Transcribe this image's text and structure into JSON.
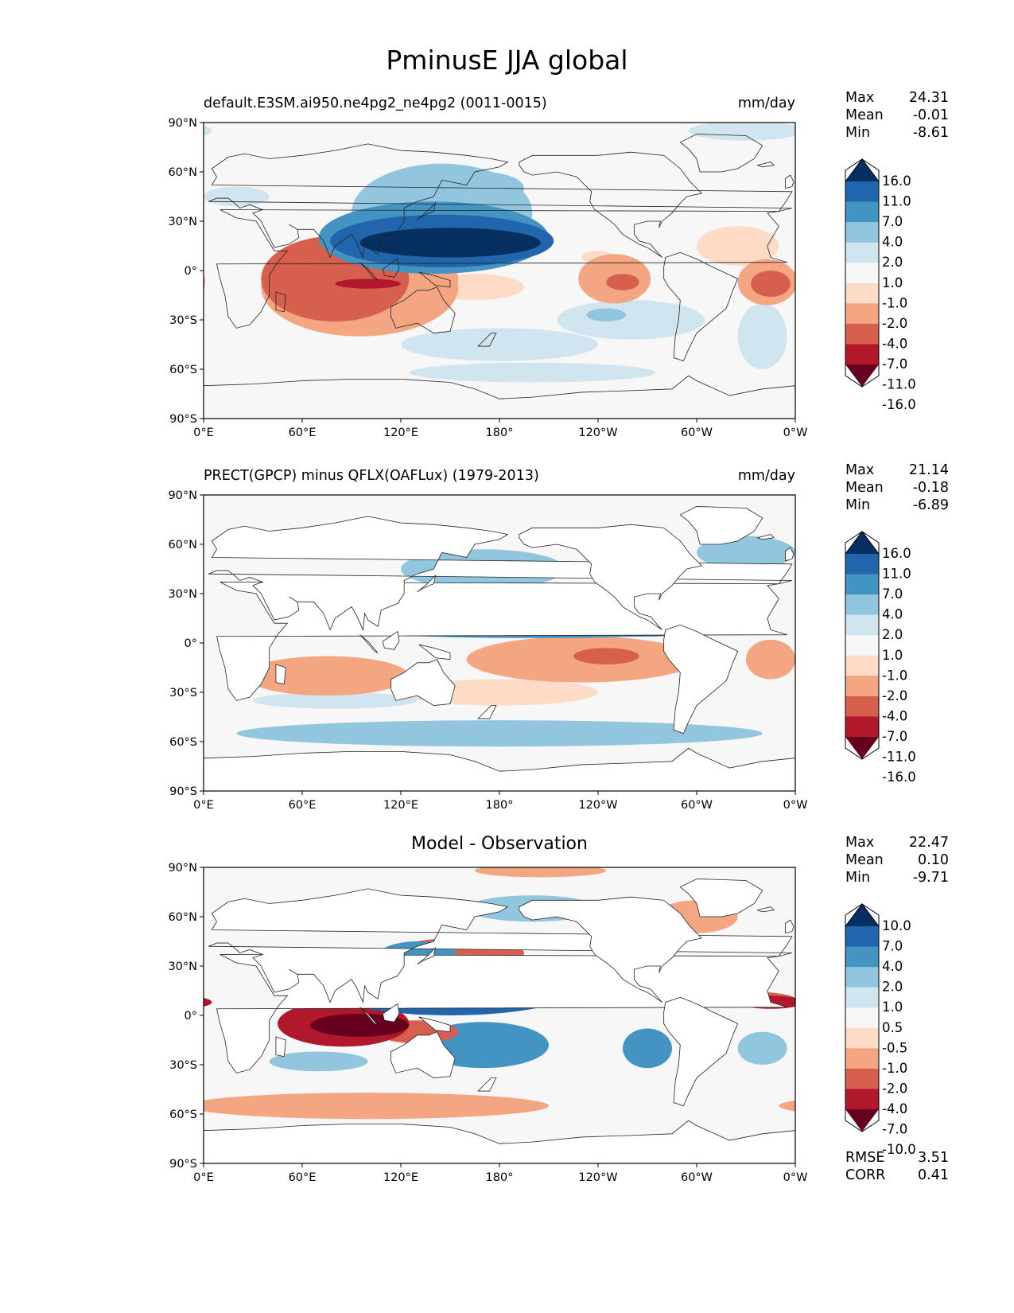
{
  "figure": {
    "title": "PminusE JJA global"
  },
  "chart_data": [
    {
      "type": "heatmap",
      "subtitle": "default.E3SM.ai950.ne4pg2_ne4pg2 (0011-0015)",
      "units": "mm/day",
      "xlabel": "",
      "ylabel": "",
      "x_ticks": [
        "0°E",
        "60°E",
        "120°E",
        "180°",
        "120°W",
        "60°W",
        "0°W"
      ],
      "y_ticks": [
        "90°N",
        "60°N",
        "30°N",
        "0°",
        "30°S",
        "60°S",
        "90°S"
      ],
      "xlim": [
        0,
        360
      ],
      "ylim": [
        -90,
        90
      ],
      "stats": {
        "max_label": "Max",
        "max": "24.31",
        "mean_label": "Mean",
        "mean": "-0.01",
        "min_label": "Min",
        "min": "-8.61"
      },
      "colorbar": {
        "levels": [
          "16.0",
          "11.0",
          "7.0",
          "4.0",
          "2.0",
          "1.0",
          "-1.0",
          "-2.0",
          "-4.0",
          "-7.0",
          "-11.0",
          "-16.0"
        ],
        "colors": [
          "#053061",
          "#2166ac",
          "#4393c3",
          "#92c5de",
          "#d1e5f0",
          "#f7f7f7",
          "#fddbc7",
          "#f4a582",
          "#d6604d",
          "#b2182b",
          "#67001f"
        ]
      },
      "anomalies": [
        {
          "lon": 150,
          "lat": 17,
          "rx": 55,
          "ry": 9,
          "value": 16
        },
        {
          "lon": 145,
          "lat": 18,
          "rx": 68,
          "ry": 16,
          "value": 8
        },
        {
          "lon": 145,
          "lat": 35,
          "rx": 55,
          "ry": 30,
          "value": 3
        },
        {
          "lon": 140,
          "lat": 20,
          "rx": 70,
          "ry": 22,
          "value": 5
        },
        {
          "lon": 170,
          "lat": 50,
          "rx": 25,
          "ry": 10,
          "value": 2.5
        },
        {
          "lon": 80,
          "lat": -5,
          "rx": 45,
          "ry": 26,
          "value": -4.5
        },
        {
          "lon": 95,
          "lat": -10,
          "rx": 60,
          "ry": 30,
          "value": -2.5
        },
        {
          "lon": 100,
          "lat": -8,
          "rx": 20,
          "ry": 3,
          "value": -8
        },
        {
          "lon": 130,
          "lat": -5,
          "rx": 25,
          "ry": 14,
          "value": -3
        },
        {
          "lon": 165,
          "lat": -10,
          "rx": 30,
          "ry": 8,
          "value": -1.5
        },
        {
          "lon": 250,
          "lat": -5,
          "rx": 22,
          "ry": 15,
          "value": -2.5
        },
        {
          "lon": 255,
          "lat": -7,
          "rx": 10,
          "ry": 5,
          "value": -5
        },
        {
          "lon": 343,
          "lat": -7,
          "rx": 18,
          "ry": 14,
          "value": -3
        },
        {
          "lon": 345,
          "lat": -8,
          "rx": 12,
          "ry": 8,
          "value": -5
        },
        {
          "lon": 325,
          "lat": 15,
          "rx": 25,
          "ry": 12,
          "value": -1.5
        },
        {
          "lon": 240,
          "lat": 8,
          "rx": 10,
          "ry": 4,
          "value": -1.5
        },
        {
          "lon": 260,
          "lat": -30,
          "rx": 45,
          "ry": 12,
          "value": 1.5
        },
        {
          "lon": 245,
          "lat": -27,
          "rx": 12,
          "ry": 4,
          "value": 2.5
        },
        {
          "lon": 180,
          "lat": -45,
          "rx": 60,
          "ry": 10,
          "value": 1.5
        },
        {
          "lon": 200,
          "lat": -62,
          "rx": 75,
          "ry": 6,
          "value": 1.5
        },
        {
          "lon": 340,
          "lat": -40,
          "rx": 15,
          "ry": 20,
          "value": 1.5
        },
        {
          "lon": 330,
          "lat": 85,
          "rx": 35,
          "ry": 6,
          "value": 1.5
        },
        {
          "lon": 20,
          "lat": 45,
          "rx": 20,
          "ry": 6,
          "value": 1.5
        }
      ]
    },
    {
      "type": "heatmap",
      "subtitle": "PRECT(GPCP) minus QFLX(OAFLux) (1979-2013)",
      "units": "mm/day",
      "xlabel": "",
      "ylabel": "",
      "x_ticks": [
        "0°E",
        "60°E",
        "120°E",
        "180°",
        "120°W",
        "60°W",
        "0°W"
      ],
      "y_ticks": [
        "90°N",
        "60°N",
        "30°N",
        "0°",
        "30°S",
        "60°S",
        "90°S"
      ],
      "xlim": [
        0,
        360
      ],
      "ylim": [
        -90,
        90
      ],
      "stats": {
        "max_label": "Max",
        "max": "21.14",
        "mean_label": "Mean",
        "mean": "-0.18",
        "min_label": "Min",
        "min": "-6.89"
      },
      "colorbar": {
        "levels": [
          "16.0",
          "11.0",
          "7.0",
          "4.0",
          "2.0",
          "1.0",
          "-1.0",
          "-2.0",
          "-4.0",
          "-7.0",
          "-11.0",
          "-16.0"
        ],
        "colors": [
          "#053061",
          "#2166ac",
          "#4393c3",
          "#92c5de",
          "#d1e5f0",
          "#f7f7f7",
          "#fddbc7",
          "#f4a582",
          "#d6604d",
          "#b2182b",
          "#67001f"
        ]
      },
      "anomalies": [
        {
          "lon": 200,
          "lat": 8,
          "rx": 110,
          "ry": 5,
          "value": 5
        },
        {
          "lon": 270,
          "lat": 8,
          "rx": 30,
          "ry": 4,
          "value": 8
        },
        {
          "lon": 130,
          "lat": 15,
          "rx": 30,
          "ry": 10,
          "value": 4
        },
        {
          "lon": 170,
          "lat": 45,
          "rx": 50,
          "ry": 12,
          "value": 2.5
        },
        {
          "lon": 330,
          "lat": 55,
          "rx": 30,
          "ry": 10,
          "value": 2.5
        },
        {
          "lon": 210,
          "lat": 25,
          "rx": 55,
          "ry": 12,
          "value": -2
        },
        {
          "lon": 320,
          "lat": 25,
          "rx": 30,
          "ry": 8,
          "value": -2
        },
        {
          "lon": 75,
          "lat": -20,
          "rx": 50,
          "ry": 12,
          "value": -3
        },
        {
          "lon": 230,
          "lat": -10,
          "rx": 70,
          "ry": 14,
          "value": -2.2
        },
        {
          "lon": 245,
          "lat": -8,
          "rx": 20,
          "ry": 5,
          "value": -5
        },
        {
          "lon": 345,
          "lat": -10,
          "rx": 15,
          "ry": 12,
          "value": -3
        },
        {
          "lon": 180,
          "lat": -30,
          "rx": 60,
          "ry": 8,
          "value": -1.5
        },
        {
          "lon": 180,
          "lat": -55,
          "rx": 160,
          "ry": 8,
          "value": 2.5
        },
        {
          "lon": 80,
          "lat": -35,
          "rx": 50,
          "ry": 5,
          "value": 1.5
        }
      ]
    },
    {
      "type": "heatmap",
      "subtitle": "Model - Observation",
      "units": "",
      "xlabel": "",
      "ylabel": "",
      "x_ticks": [
        "0°E",
        "60°E",
        "120°E",
        "180°",
        "120°W",
        "60°W",
        "0°W"
      ],
      "y_ticks": [
        "90°N",
        "60°N",
        "30°N",
        "0°",
        "30°S",
        "60°S",
        "90°S"
      ],
      "xlim": [
        0,
        360
      ],
      "ylim": [
        -90,
        90
      ],
      "stats": {
        "max_label": "Max",
        "max": "22.47",
        "mean_label": "Mean",
        "mean": "0.10",
        "min_label": "Min",
        "min": "-9.71"
      },
      "stats_bottom": {
        "rmse_label": "RMSE",
        "rmse": "3.51",
        "corr_label": "CORR",
        "corr": "0.41"
      },
      "colorbar": {
        "levels": [
          "10.0",
          "7.0",
          "4.0",
          "2.0",
          "1.0",
          "0.5",
          "-0.5",
          "-1.0",
          "-2.0",
          "-4.0",
          "-7.0",
          "-10.0"
        ],
        "colors": [
          "#053061",
          "#2166ac",
          "#4393c3",
          "#92c5de",
          "#d1e5f0",
          "#f7f7f7",
          "#fddbc7",
          "#f4a582",
          "#d6604d",
          "#b2182b",
          "#67001f"
        ]
      },
      "anomalies": [
        {
          "lon": 150,
          "lat": 15,
          "rx": 70,
          "ry": 10,
          "value": 12
        },
        {
          "lon": 150,
          "lat": 18,
          "rx": 80,
          "ry": 18,
          "value": 6
        },
        {
          "lon": 130,
          "lat": 35,
          "rx": 25,
          "ry": 10,
          "value": 3
        },
        {
          "lon": 170,
          "lat": -18,
          "rx": 40,
          "ry": 14,
          "value": 3
        },
        {
          "lon": 275,
          "lat": 25,
          "rx": 25,
          "ry": 10,
          "value": 2.5
        },
        {
          "lon": 270,
          "lat": -20,
          "rx": 15,
          "ry": 12,
          "value": 2
        },
        {
          "lon": 340,
          "lat": -20,
          "rx": 15,
          "ry": 10,
          "value": 1.5
        },
        {
          "lon": 70,
          "lat": -28,
          "rx": 30,
          "ry": 6,
          "value": 1.5
        },
        {
          "lon": 200,
          "lat": 65,
          "rx": 40,
          "ry": 8,
          "value": 1.2
        },
        {
          "lon": 85,
          "lat": -5,
          "rx": 40,
          "ry": 14,
          "value": -5
        },
        {
          "lon": 95,
          "lat": -6,
          "rx": 30,
          "ry": 7,
          "value": -8
        },
        {
          "lon": 155,
          "lat": 38,
          "rx": 40,
          "ry": 9,
          "value": -2.5
        },
        {
          "lon": 230,
          "lat": 10,
          "rx": 50,
          "ry": 5,
          "value": -5
        },
        {
          "lon": 320,
          "lat": 10,
          "rx": 40,
          "ry": 5,
          "value": -4
        },
        {
          "lon": 345,
          "lat": 8,
          "rx": 20,
          "ry": 4,
          "value": -7
        },
        {
          "lon": 130,
          "lat": -10,
          "rx": 25,
          "ry": 7,
          "value": -4
        },
        {
          "lon": 100,
          "lat": -55,
          "rx": 110,
          "ry": 8,
          "value": -2
        },
        {
          "lon": 300,
          "lat": 60,
          "rx": 25,
          "ry": 10,
          "value": -2
        },
        {
          "lon": 205,
          "lat": 88,
          "rx": 40,
          "ry": 4,
          "value": -1.5
        }
      ]
    }
  ]
}
